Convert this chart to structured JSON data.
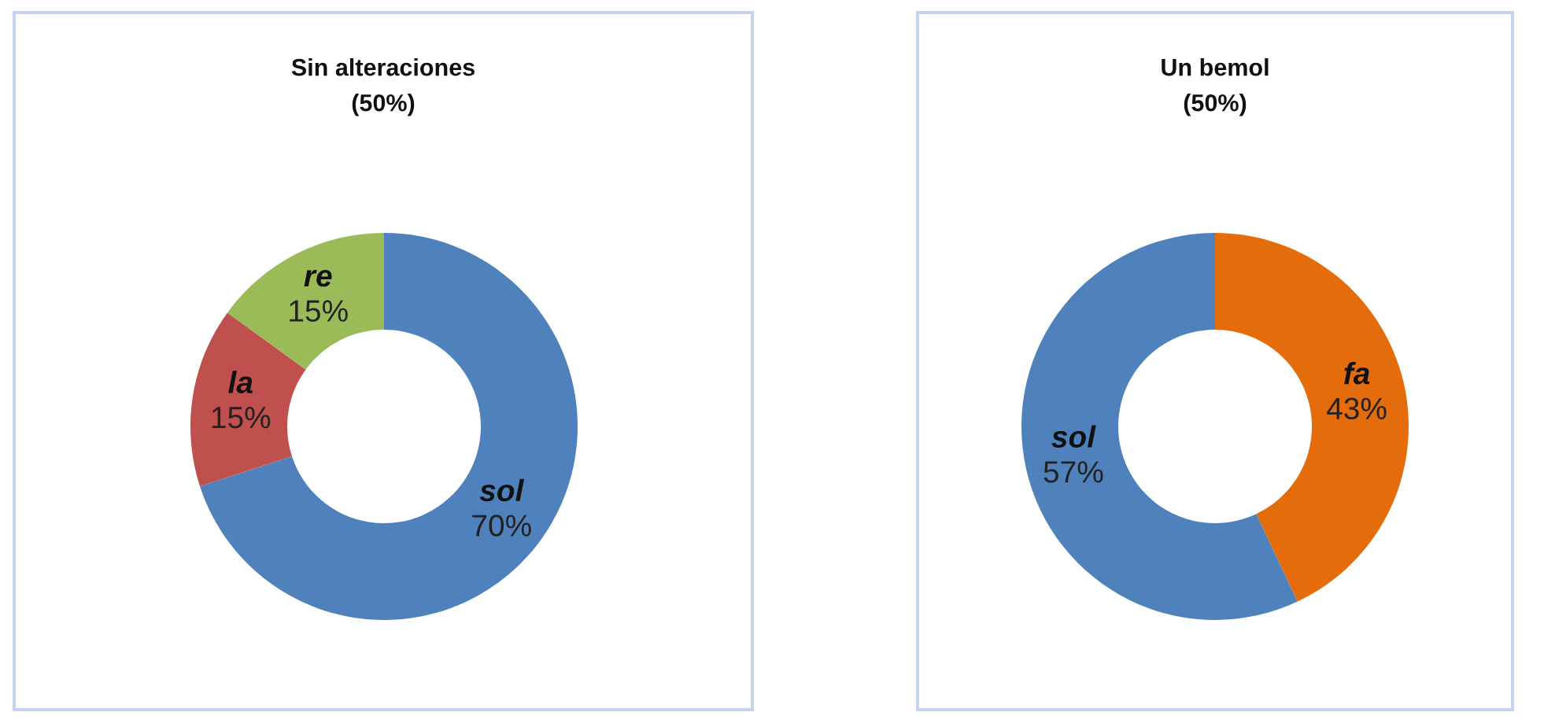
{
  "chart_data": [
    {
      "type": "donut",
      "title": "Sin alteraciones\n(50%)",
      "categories": [
        "sol",
        "la",
        "re"
      ],
      "values": [
        70,
        15,
        15
      ],
      "colors": [
        "#4f81bd",
        "#c0504d",
        "#9bbb59"
      ],
      "value_labels": [
        "70%",
        "15%",
        "15%"
      ]
    },
    {
      "type": "donut",
      "title": "Un bemol\n(50%)",
      "categories": [
        "fa",
        "sol"
      ],
      "values": [
        43,
        57
      ],
      "colors": [
        "#e46c0a",
        "#4f81bd"
      ],
      "value_labels": [
        "43%",
        "57%"
      ]
    }
  ]
}
